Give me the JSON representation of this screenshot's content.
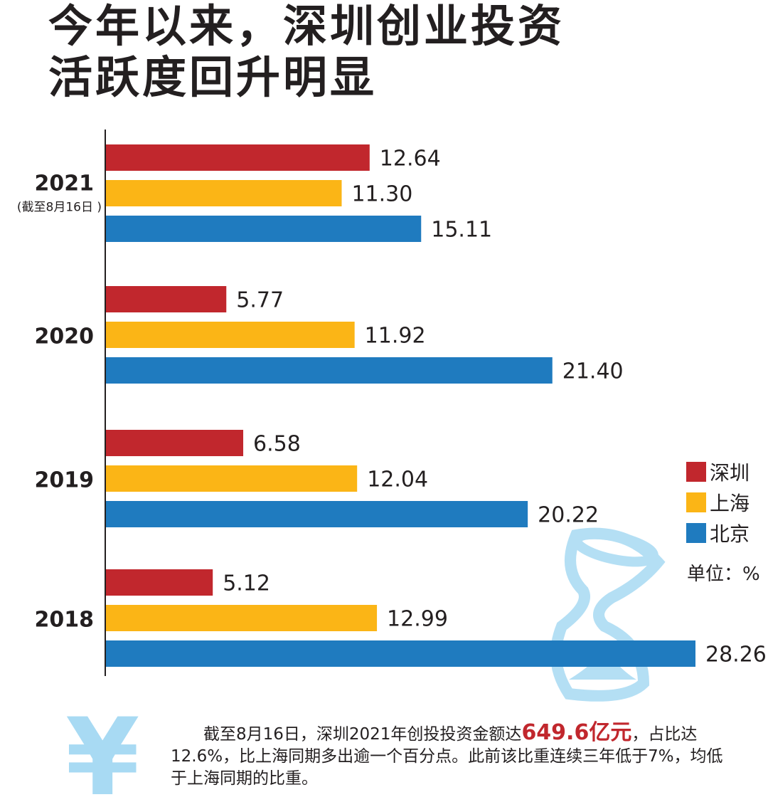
{
  "title_line1": "今年以来，深圳创业投资",
  "title_line2": "活跃度回升明显",
  "chart_data": {
    "type": "bar",
    "orientation": "horizontal",
    "title": "今年以来，深圳创业投资活跃度回升明显",
    "categories": [
      "2021",
      "2020",
      "2019",
      "2018"
    ],
    "category_notes": {
      "2021": "(截至8月16日 )"
    },
    "unit": "单位：%",
    "series": [
      {
        "name": "深圳",
        "color": "#c1272d",
        "values": [
          12.64,
          5.77,
          6.58,
          5.12
        ],
        "labels": [
          "12.64",
          "5.77",
          "6.58",
          "5.12"
        ]
      },
      {
        "name": "上海",
        "color": "#fbb516",
        "values": [
          11.3,
          11.92,
          12.04,
          12.99
        ],
        "labels": [
          "11.30",
          "11.92",
          "12.04",
          "12.99"
        ]
      },
      {
        "name": "北京",
        "color": "#1f7bbf",
        "values": [
          15.11,
          21.4,
          20.22,
          28.26
        ],
        "labels": [
          "15.11",
          "21.40",
          "20.22",
          "28.26"
        ]
      }
    ],
    "xlim": [
      0,
      28.26
    ],
    "legend_position": "right",
    "grid": false
  },
  "note": {
    "before": "截至8月16日，深圳2021年创投投资金额达",
    "highlight": "649.6亿元",
    "after": "，占比达12.6%，比上海同期多出逾一个百分点。此前该比重连续三年低于7%，均低于上海同期的比重。"
  },
  "decor": {
    "yen_symbol": "¥"
  }
}
